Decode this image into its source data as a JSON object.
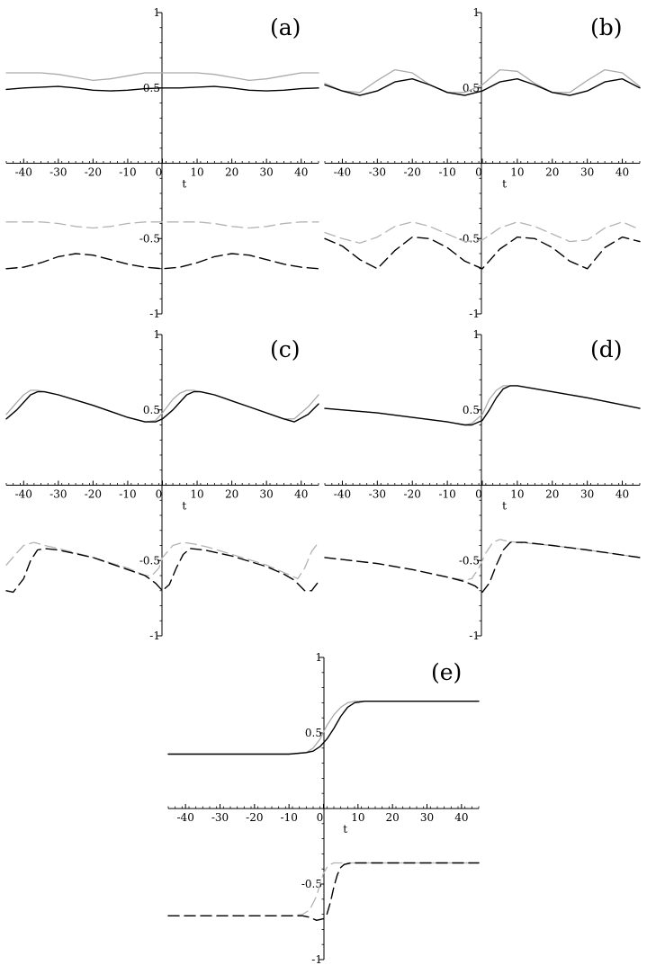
{
  "chart_data": [
    {
      "type": "line",
      "panel_label": "(a)",
      "xlabel": "t",
      "xlim": [
        -45,
        45
      ],
      "ylim": [
        -1,
        1
      ],
      "x_ticks": [
        -40,
        -30,
        -20,
        -10,
        0,
        10,
        20,
        30,
        40
      ],
      "y_ticks": [
        1,
        0.5,
        -0.5,
        -1
      ],
      "y_tick_labels": [
        "1",
        "0.5",
        "-0.5",
        "-1"
      ],
      "grid": false,
      "legend": "none",
      "series": [
        {
          "style": "solid-black",
          "x": [
            -45,
            -40,
            -35,
            -30,
            -25,
            -20,
            -15,
            -10,
            -5,
            0,
            5,
            10,
            15,
            20,
            25,
            30,
            35,
            40,
            45
          ],
          "y": [
            0.49,
            0.5,
            0.505,
            0.51,
            0.5,
            0.485,
            0.48,
            0.485,
            0.495,
            0.5,
            0.5,
            0.505,
            0.51,
            0.5,
            0.485,
            0.48,
            0.485,
            0.495,
            0.5
          ]
        },
        {
          "style": "solid-grey",
          "x": [
            -45,
            -40,
            -35,
            -30,
            -25,
            -20,
            -15,
            -10,
            -5,
            0,
            5,
            10,
            15,
            20,
            25,
            30,
            35,
            40,
            45
          ],
          "y": [
            0.6,
            0.6,
            0.6,
            0.59,
            0.57,
            0.55,
            0.56,
            0.58,
            0.6,
            0.6,
            0.6,
            0.6,
            0.59,
            0.57,
            0.55,
            0.56,
            0.58,
            0.6,
            0.6
          ]
        },
        {
          "style": "dashed-black",
          "x": [
            -45,
            -40,
            -35,
            -30,
            -25,
            -20,
            -15,
            -10,
            -5,
            0,
            5,
            10,
            15,
            20,
            25,
            30,
            35,
            40,
            45
          ],
          "y": [
            -0.7,
            -0.69,
            -0.66,
            -0.62,
            -0.6,
            -0.61,
            -0.64,
            -0.67,
            -0.69,
            -0.7,
            -0.69,
            -0.66,
            -0.62,
            -0.6,
            -0.61,
            -0.64,
            -0.67,
            -0.69,
            -0.7
          ]
        },
        {
          "style": "dashed-grey",
          "x": [
            -45,
            -40,
            -35,
            -30,
            -25,
            -20,
            -15,
            -10,
            -5,
            0,
            5,
            10,
            15,
            20,
            25,
            30,
            35,
            40,
            45
          ],
          "y": [
            -0.39,
            -0.39,
            -0.39,
            -0.4,
            -0.42,
            -0.43,
            -0.42,
            -0.4,
            -0.39,
            -0.39,
            -0.39,
            -0.39,
            -0.4,
            -0.42,
            -0.43,
            -0.42,
            -0.4,
            -0.39,
            -0.39
          ]
        }
      ]
    },
    {
      "type": "line",
      "panel_label": "(b)",
      "xlabel": "t",
      "xlim": [
        -45,
        45
      ],
      "ylim": [
        -1,
        1
      ],
      "x_ticks": [
        -40,
        -30,
        -20,
        -10,
        0,
        10,
        20,
        30,
        40
      ],
      "y_ticks": [
        1,
        0.5,
        -0.5,
        -1
      ],
      "y_tick_labels": [
        "1",
        "0.5",
        "-0.5",
        "-1"
      ],
      "grid": false,
      "legend": "none",
      "series": [
        {
          "style": "solid-black",
          "x": [
            -45,
            -40,
            -35,
            -30,
            -25,
            -20,
            -15,
            -10,
            -5,
            0,
            5,
            10,
            15,
            20,
            25,
            30,
            35,
            40,
            45
          ],
          "y": [
            0.52,
            0.48,
            0.45,
            0.48,
            0.54,
            0.56,
            0.52,
            0.47,
            0.45,
            0.48,
            0.54,
            0.56,
            0.52,
            0.47,
            0.45,
            0.48,
            0.54,
            0.56,
            0.5
          ]
        },
        {
          "style": "solid-grey",
          "x": [
            -45,
            -40,
            -35,
            -30,
            -25,
            -20,
            -15,
            -10,
            -5,
            0,
            5,
            10,
            15,
            20,
            25,
            30,
            35,
            40,
            45
          ],
          "y": [
            0.53,
            0.48,
            0.47,
            0.55,
            0.62,
            0.6,
            0.52,
            0.47,
            0.47,
            0.52,
            0.62,
            0.61,
            0.53,
            0.47,
            0.47,
            0.55,
            0.62,
            0.6,
            0.51
          ]
        },
        {
          "style": "dashed-black",
          "x": [
            -45,
            -40,
            -35,
            -30,
            -25,
            -20,
            -15,
            -10,
            -5,
            0,
            5,
            10,
            15,
            20,
            25,
            30,
            35,
            40,
            45
          ],
          "y": [
            -0.5,
            -0.55,
            -0.64,
            -0.7,
            -0.58,
            -0.49,
            -0.5,
            -0.56,
            -0.65,
            -0.7,
            -0.57,
            -0.49,
            -0.5,
            -0.56,
            -0.65,
            -0.7,
            -0.56,
            -0.49,
            -0.52
          ]
        },
        {
          "style": "dashed-grey",
          "x": [
            -45,
            -40,
            -35,
            -30,
            -25,
            -20,
            -15,
            -10,
            -5,
            0,
            5,
            10,
            15,
            20,
            25,
            30,
            35,
            40,
            45
          ],
          "y": [
            -0.46,
            -0.5,
            -0.53,
            -0.49,
            -0.42,
            -0.39,
            -0.42,
            -0.47,
            -0.52,
            -0.51,
            -0.43,
            -0.39,
            -0.42,
            -0.47,
            -0.52,
            -0.51,
            -0.43,
            -0.39,
            -0.44
          ]
        }
      ]
    },
    {
      "type": "line",
      "panel_label": "(c)",
      "xlabel": "t",
      "xlim": [
        -45,
        45
      ],
      "ylim": [
        -1,
        1
      ],
      "x_ticks": [
        -40,
        -30,
        -20,
        -10,
        0,
        10,
        20,
        30,
        40
      ],
      "y_ticks": [
        1,
        0.5,
        -0.5,
        -1
      ],
      "y_tick_labels": [
        "1",
        "0.5",
        "-0.5",
        "-1"
      ],
      "grid": false,
      "legend": "none",
      "series": [
        {
          "style": "solid-black",
          "x": [
            -45,
            -42,
            -40,
            -38,
            -36,
            -34,
            -30,
            -20,
            -10,
            -5,
            -2,
            0,
            3,
            5,
            7,
            9,
            11,
            15,
            25,
            35,
            38,
            42,
            45
          ],
          "y": [
            0.44,
            0.5,
            0.55,
            0.6,
            0.62,
            0.62,
            0.6,
            0.53,
            0.45,
            0.42,
            0.42,
            0.44,
            0.5,
            0.55,
            0.6,
            0.62,
            0.62,
            0.6,
            0.52,
            0.44,
            0.42,
            0.47,
            0.54
          ]
        },
        {
          "style": "solid-grey",
          "x": [
            -45,
            -42,
            -40,
            -38,
            -36,
            -34,
            -30,
            -20,
            -10,
            -5,
            -2,
            0,
            3,
            5,
            7,
            9,
            11,
            15,
            25,
            35,
            38,
            42,
            45
          ],
          "y": [
            0.47,
            0.55,
            0.6,
            0.63,
            0.63,
            0.62,
            0.6,
            0.53,
            0.45,
            0.42,
            0.43,
            0.48,
            0.57,
            0.61,
            0.63,
            0.63,
            0.62,
            0.6,
            0.52,
            0.44,
            0.44,
            0.52,
            0.6
          ]
        },
        {
          "style": "dashed-black",
          "x": [
            -45,
            -43,
            -40,
            -38,
            -36,
            -34,
            -30,
            -20,
            -10,
            -5,
            -2,
            0,
            2,
            4,
            6,
            8,
            12,
            20,
            30,
            35,
            38,
            41,
            43,
            45
          ],
          "y": [
            -0.7,
            -0.71,
            -0.62,
            -0.5,
            -0.43,
            -0.42,
            -0.43,
            -0.48,
            -0.56,
            -0.6,
            -0.65,
            -0.7,
            -0.66,
            -0.55,
            -0.46,
            -0.42,
            -0.43,
            -0.47,
            -0.54,
            -0.59,
            -0.63,
            -0.7,
            -0.7,
            -0.64
          ]
        },
        {
          "style": "dashed-grey",
          "x": [
            -45,
            -42,
            -40,
            -37,
            -34,
            -30,
            -20,
            -10,
            -5,
            -3,
            -1,
            0,
            3,
            6,
            9,
            13,
            20,
            30,
            37,
            39,
            41,
            43,
            45
          ],
          "y": [
            -0.53,
            -0.45,
            -0.4,
            -0.38,
            -0.4,
            -0.42,
            -0.48,
            -0.55,
            -0.6,
            -0.6,
            -0.55,
            -0.48,
            -0.4,
            -0.38,
            -0.39,
            -0.41,
            -0.46,
            -0.53,
            -0.6,
            -0.62,
            -0.55,
            -0.44,
            -0.38
          ]
        }
      ]
    },
    {
      "type": "line",
      "panel_label": "(d)",
      "xlabel": "t",
      "xlim": [
        -45,
        45
      ],
      "ylim": [
        -1,
        1
      ],
      "x_ticks": [
        -40,
        -30,
        -20,
        -10,
        0,
        10,
        20,
        30,
        40
      ],
      "y_ticks": [
        1,
        0.5,
        -0.5,
        -1
      ],
      "y_tick_labels": [
        "1",
        "0.5",
        "-0.5",
        "-1"
      ],
      "grid": false,
      "legend": "none",
      "series": [
        {
          "style": "solid-black",
          "x": [
            -45,
            -30,
            -20,
            -10,
            -5,
            -3,
            0,
            2,
            4,
            6,
            8,
            10,
            20,
            30,
            45
          ],
          "y": [
            0.51,
            0.48,
            0.45,
            0.42,
            0.4,
            0.4,
            0.43,
            0.5,
            0.58,
            0.64,
            0.66,
            0.66,
            0.62,
            0.58,
            0.51
          ]
        },
        {
          "style": "solid-grey",
          "x": [
            -45,
            -30,
            -20,
            -10,
            -5,
            -3,
            0,
            2,
            4,
            6,
            8,
            10,
            20,
            30,
            45
          ],
          "y": [
            0.51,
            0.48,
            0.45,
            0.42,
            0.4,
            0.41,
            0.47,
            0.57,
            0.63,
            0.66,
            0.66,
            0.66,
            0.62,
            0.58,
            0.51
          ]
        },
        {
          "style": "dashed-black",
          "x": [
            -45,
            -30,
            -20,
            -10,
            -5,
            -2,
            0,
            2,
            4,
            6,
            8,
            12,
            20,
            30,
            45
          ],
          "y": [
            -0.48,
            -0.52,
            -0.56,
            -0.61,
            -0.64,
            -0.67,
            -0.71,
            -0.65,
            -0.53,
            -0.43,
            -0.38,
            -0.38,
            -0.4,
            -0.43,
            -0.48
          ]
        },
        {
          "style": "dashed-grey",
          "x": [
            -45,
            -30,
            -20,
            -10,
            -5,
            -3,
            -1,
            1,
            3,
            5,
            7,
            10,
            20,
            30,
            45
          ],
          "y": [
            -0.48,
            -0.52,
            -0.56,
            -0.61,
            -0.63,
            -0.62,
            -0.55,
            -0.45,
            -0.38,
            -0.36,
            -0.37,
            -0.38,
            -0.4,
            -0.43,
            -0.48
          ]
        }
      ]
    },
    {
      "type": "line",
      "panel_label": "(e)",
      "xlabel": "t",
      "xlim": [
        -45,
        45
      ],
      "ylim": [
        -1,
        1
      ],
      "x_ticks": [
        -40,
        -30,
        -20,
        -10,
        0,
        10,
        20,
        30,
        40
      ],
      "y_ticks": [
        1,
        0.5,
        -0.5,
        -1
      ],
      "y_tick_labels": [
        "1",
        "0.5",
        "-0.5",
        "-1"
      ],
      "grid": false,
      "legend": "none",
      "series": [
        {
          "style": "solid-black",
          "x": [
            -45,
            -20,
            -10,
            -5,
            -3,
            -1,
            1,
            3,
            5,
            7,
            9,
            12,
            20,
            45
          ],
          "y": [
            0.36,
            0.36,
            0.36,
            0.37,
            0.38,
            0.41,
            0.46,
            0.53,
            0.61,
            0.67,
            0.7,
            0.71,
            0.71,
            0.71
          ]
        },
        {
          "style": "solid-grey",
          "x": [
            -45,
            -20,
            -10,
            -5,
            -3,
            -1,
            1,
            3,
            5,
            7,
            9,
            12,
            20,
            45
          ],
          "y": [
            0.36,
            0.36,
            0.36,
            0.37,
            0.4,
            0.46,
            0.55,
            0.62,
            0.67,
            0.7,
            0.71,
            0.71,
            0.71,
            0.71
          ]
        },
        {
          "style": "dashed-black",
          "x": [
            -45,
            -20,
            -10,
            -6,
            -4,
            -2,
            0,
            1,
            2,
            3,
            4,
            5,
            6,
            8,
            10,
            20,
            45
          ],
          "y": [
            -0.71,
            -0.71,
            -0.71,
            -0.71,
            -0.72,
            -0.74,
            -0.73,
            -0.7,
            -0.62,
            -0.52,
            -0.44,
            -0.39,
            -0.37,
            -0.36,
            -0.36,
            -0.36,
            -0.36
          ]
        },
        {
          "style": "dashed-grey",
          "x": [
            -45,
            -20,
            -10,
            -6,
            -4,
            -2,
            -1,
            0,
            1,
            2,
            3,
            4,
            6,
            8,
            10,
            20,
            45
          ],
          "y": [
            -0.71,
            -0.71,
            -0.71,
            -0.7,
            -0.67,
            -0.58,
            -0.5,
            -0.43,
            -0.39,
            -0.37,
            -0.36,
            -0.36,
            -0.36,
            -0.36,
            -0.36,
            -0.36,
            -0.36
          ]
        }
      ]
    }
  ],
  "colors": {
    "black": "#000000",
    "grey": "#aaaaaa",
    "dashed_grey": "#b3b3b3"
  }
}
